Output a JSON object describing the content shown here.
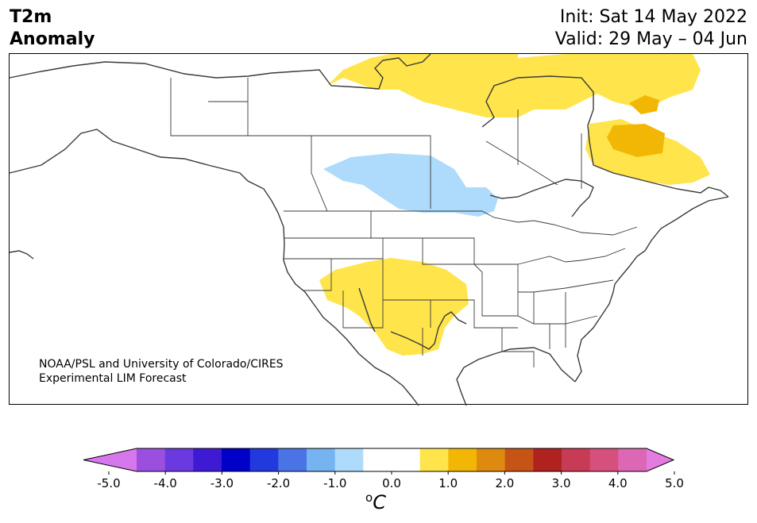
{
  "header": {
    "variable": "T2m",
    "subtitle": "Anomaly",
    "init": "Init: Sat 14 May 2022",
    "valid": "Valid: 29 May – 04 Jun"
  },
  "credit": {
    "line1": "NOAA/PSL and University of Colorado/CIRES",
    "line2": "Experimental LIM Forecast"
  },
  "map": {
    "region": "North America",
    "anomalies": [
      {
        "area": "Arctic islands / northern Canada",
        "level": 1.0,
        "color": "#ffe44c"
      },
      {
        "area": "Hudson Bay / Labrador / Quebec",
        "level": 1.0,
        "color": "#ffe44c"
      },
      {
        "area": "Quebec / Labrador core",
        "level": 1.5,
        "color": "#f2b705"
      },
      {
        "area": "Canadian Prairies",
        "level": -1.0,
        "color": "#aedbfb"
      },
      {
        "area": "US Southwest / Four Corners / Texas",
        "level": 1.0,
        "color": "#ffe44c"
      }
    ]
  },
  "colorbar": {
    "unit_main": "C",
    "unit_sup": "o",
    "ticks": [
      "-5.0",
      "-4.0",
      "-3.0",
      "-2.0",
      "-1.0",
      "0.0",
      "1.0",
      "2.0",
      "3.0",
      "4.0",
      "5.0"
    ],
    "colors": [
      "#9a4fde",
      "#6b39e0",
      "#3e1bd2",
      "#0000c8",
      "#2239dd",
      "#4a74e6",
      "#75b3f1",
      "#aedbfb",
      "#ffffff",
      "#ffffff",
      "#ffe44c",
      "#f2b705",
      "#de8910",
      "#c65417",
      "#b0221f",
      "#c83b55",
      "#d5507c",
      "#dc68b5"
    ],
    "low_extend_color": "#d777ec",
    "high_extend_color": "#e47be0"
  }
}
